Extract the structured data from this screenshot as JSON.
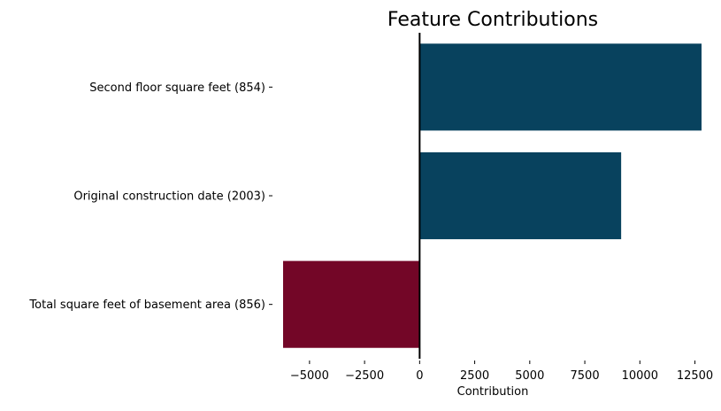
{
  "chart_data": {
    "type": "bar",
    "orientation": "horizontal",
    "title": "Feature Contributions",
    "xlabel": "Contribution",
    "ylabel": "",
    "categories": [
      "Second floor square feet (854)",
      "Original construction date (2003)",
      "Total square feet of basement area (856)"
    ],
    "values": [
      12800,
      9150,
      -6200
    ],
    "xlim": [
      -6200,
      12800
    ],
    "xticks": [
      -5000,
      -2500,
      0,
      2500,
      5000,
      7500,
      10000,
      12500
    ],
    "xtick_labels": [
      "−5000",
      "−2500",
      "0",
      "2500",
      "5000",
      "7500",
      "10000",
      "12500"
    ],
    "colors": {
      "positive": "#08425e",
      "negative": "#730627",
      "zero_line": "#000000"
    },
    "grid": false,
    "legend": "none"
  }
}
